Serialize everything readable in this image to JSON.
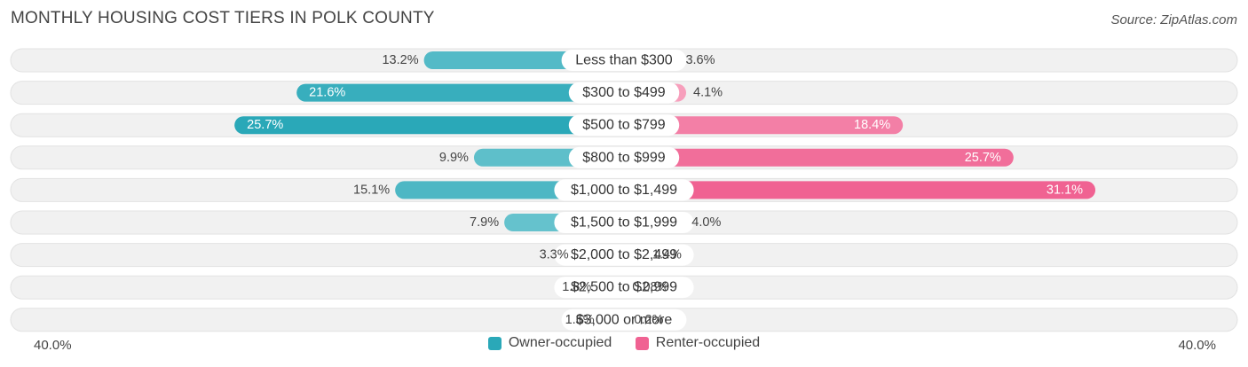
{
  "header": {
    "title": "MONTHLY HOUSING COST TIERS IN POLK COUNTY",
    "source": "Source: ZipAtlas.com"
  },
  "colors": {
    "owner": "#2aa8b8",
    "owner_light": "#7fcdd6",
    "renter": "#f06292",
    "renter_light": "#f8a8c2",
    "row_bg": "#f1f1f1"
  },
  "chart_data": {
    "type": "bar",
    "orientation": "diverging-horizontal",
    "categories": [
      "Less than $300",
      "$300 to $499",
      "$500 to $799",
      "$800 to $999",
      "$1,000 to $1,499",
      "$1,500 to $1,999",
      "$2,000 to $2,499",
      "$2,500 to $2,999",
      "$3,000 or more"
    ],
    "series": [
      {
        "name": "Owner-occupied",
        "values": [
          13.2,
          21.6,
          25.7,
          9.9,
          15.1,
          7.9,
          3.3,
          1.8,
          1.6
        ],
        "labels": [
          "13.2%",
          "21.6%",
          "25.7%",
          "9.9%",
          "15.1%",
          "7.9%",
          "3.3%",
          "1.8%",
          "1.6%"
        ]
      },
      {
        "name": "Renter-occupied",
        "values": [
          3.6,
          4.1,
          18.4,
          25.7,
          31.1,
          4.0,
          1.4,
          0.08,
          0.2
        ],
        "labels": [
          "3.6%",
          "4.1%",
          "18.4%",
          "25.7%",
          "31.1%",
          "4.0%",
          "1.4%",
          "0.08%",
          "0.2%"
        ]
      }
    ],
    "xlim": [
      -40,
      40
    ],
    "axis_left_label": "40.0%",
    "axis_right_label": "40.0%",
    "legend_position": "bottom"
  }
}
